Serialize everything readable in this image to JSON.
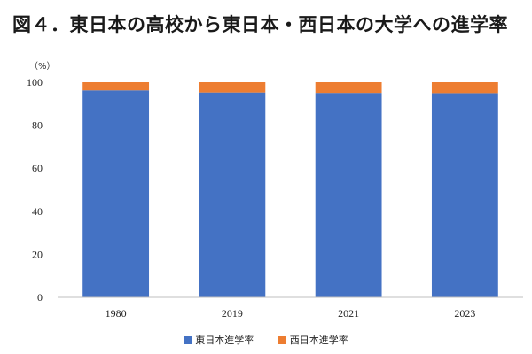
{
  "chart_data": {
    "type": "bar",
    "stacked": true,
    "title": "図４．東日本の高校から東日本・西日本の大学への進学率",
    "unit_label": "（%）",
    "categories": [
      "1980",
      "2019",
      "2021",
      "2023"
    ],
    "series": [
      {
        "name": "東日本進学率",
        "color": "#4472c4",
        "values": [
          96.2,
          95.2,
          95.0,
          94.9
        ]
      },
      {
        "name": "西日本進学率",
        "color": "#ed7d31",
        "values": [
          3.8,
          4.8,
          5.0,
          5.1
        ]
      }
    ],
    "ylim": [
      0,
      100
    ],
    "yticks": [
      0,
      20,
      40,
      60,
      80,
      100
    ],
    "grid": false,
    "legend_position": "bottom"
  }
}
